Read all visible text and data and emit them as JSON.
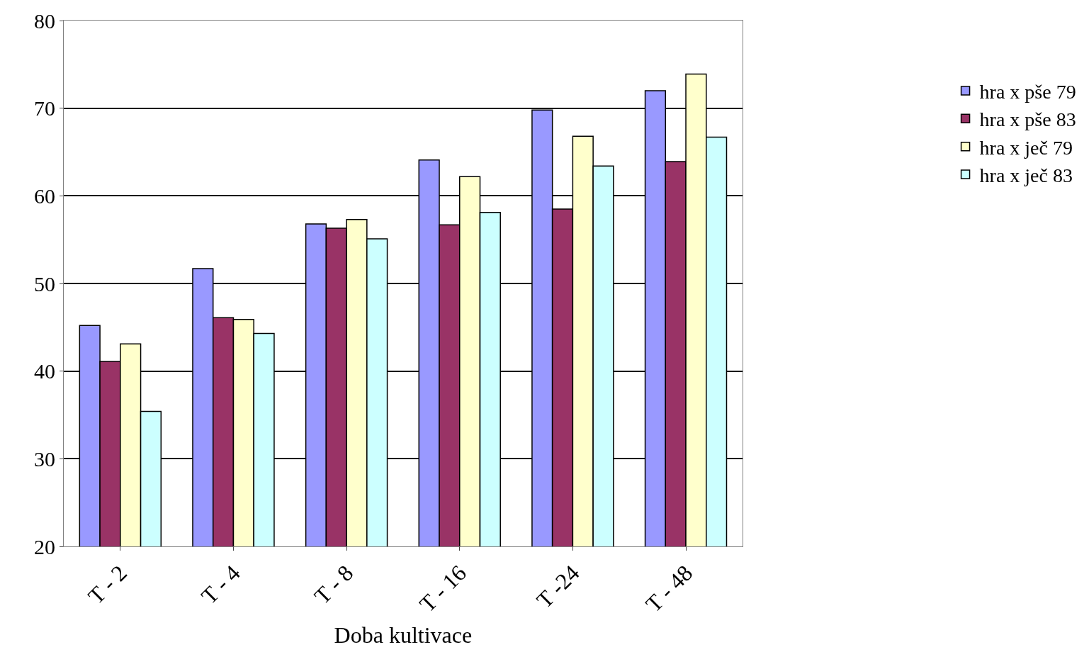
{
  "chart_data": {
    "type": "bar",
    "xlabel": "Doba kultivace",
    "categories": [
      "T - 2",
      "T - 4",
      "T - 8",
      "T - 16",
      "T -24",
      "T - 48"
    ],
    "series": [
      {
        "name": "hra x pše 79",
        "color": "#9999ff",
        "values": [
          45.2,
          51.7,
          56.8,
          64.1,
          69.8,
          72.0
        ]
      },
      {
        "name": "hra x pše 83",
        "color": "#993366",
        "values": [
          41.1,
          46.1,
          56.3,
          56.7,
          58.5,
          63.9
        ]
      },
      {
        "name": "hra x ječ 79",
        "color": "#ffffcc",
        "values": [
          43.1,
          45.9,
          57.3,
          62.2,
          66.8,
          73.9
        ]
      },
      {
        "name": "hra x ječ 83",
        "color": "#ccffff",
        "values": [
          35.4,
          44.3,
          55.1,
          58.1,
          63.4,
          66.7
        ]
      }
    ],
    "ylim": [
      20,
      80
    ],
    "yticks": [
      20,
      30,
      40,
      50,
      60,
      70,
      80
    ],
    "grid": "y",
    "legend": "right"
  }
}
